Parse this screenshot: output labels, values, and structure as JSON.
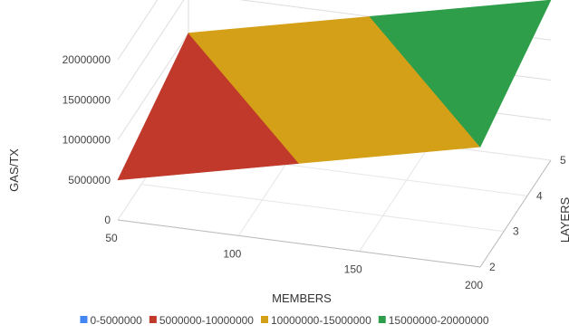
{
  "chart_data": {
    "type": "surface",
    "xlabel": "MEMBERS",
    "ylabel": "GAS/TX",
    "zlabel": "LAYERS",
    "x_ticks": [
      "50",
      "100",
      "150",
      "200"
    ],
    "y_ticks": [
      "0",
      "5000000",
      "10000000",
      "15000000",
      "20000000"
    ],
    "z_ticks": [
      "2",
      "3",
      "4",
      "5"
    ],
    "xlim": [
      50,
      200
    ],
    "ylim": [
      0,
      20000000
    ],
    "zlim": [
      2,
      5
    ],
    "grid": true,
    "legend_position": "bottom",
    "surface": {
      "members": [
        50,
        200
      ],
      "layers": [
        2,
        5
      ],
      "gas_per_tx": [
        [
          5000000,
          10000000
        ],
        [
          15000000,
          20000000
        ]
      ]
    },
    "bands": [
      {
        "name": "0-5000000",
        "min": 0,
        "max": 5000000,
        "color": "#4285f4"
      },
      {
        "name": "5000000-10000000",
        "min": 5000000,
        "max": 10000000,
        "color": "#c0392b"
      },
      {
        "name": "10000000-15000000",
        "min": 10000000,
        "max": 15000000,
        "color": "#d4a017"
      },
      {
        "name": "15000000-20000000",
        "min": 15000000,
        "max": 20000000,
        "color": "#2e9e4a"
      }
    ]
  }
}
